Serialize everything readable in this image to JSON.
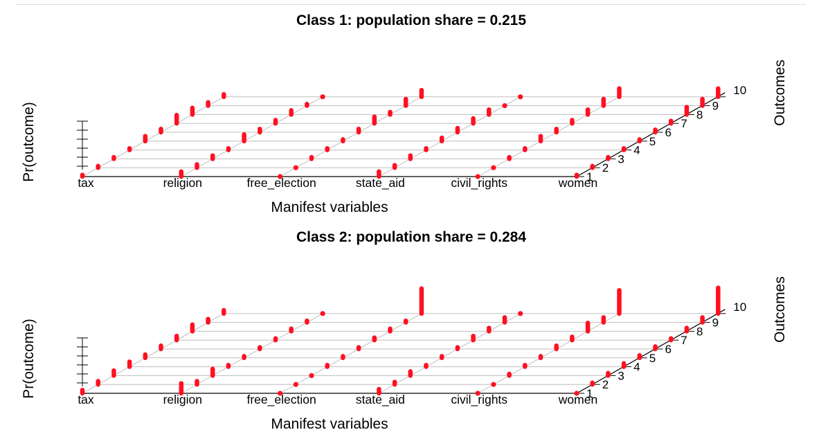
{
  "chart_data": [
    {
      "type": "3d-stick",
      "title": "Class 1: population share = 0.215",
      "xlabel": "Manifest variables",
      "ylabel": "Pr(outcome)",
      "zlabel": "Outcomes",
      "variables": [
        "tax",
        "religion",
        "free_election",
        "state_aid",
        "civil_rights",
        "women"
      ],
      "outcomes": [
        "1",
        "2",
        "3",
        "4",
        "5",
        "6",
        "7",
        "8",
        "9",
        "10"
      ],
      "probabilities": [
        [
          0.02,
          0.02,
          0.02,
          0.02,
          0.06,
          0.04,
          0.1,
          0.08,
          0.04,
          0.03
        ],
        [
          0.06,
          0.04,
          0.04,
          0.02,
          0.08,
          0.04,
          0.04,
          0.05,
          0.02,
          0.0
        ],
        [
          0.0,
          0.0,
          0.02,
          0.02,
          0.02,
          0.04,
          0.08,
          0.03,
          0.08,
          0.08
        ],
        [
          0.06,
          0.03,
          0.04,
          0.02,
          0.04,
          0.05,
          0.06,
          0.06,
          0.0,
          0.0
        ],
        [
          0.0,
          0.0,
          0.02,
          0.02,
          0.06,
          0.04,
          0.04,
          0.06,
          0.08,
          0.1
        ],
        [
          0.02,
          0.02,
          0.02,
          0.02,
          0.02,
          0.03,
          0.03,
          0.09,
          0.08,
          0.1
        ]
      ],
      "zmax": 0.6
    },
    {
      "type": "3d-stick",
      "title": "Class 2: population share = 0.284",
      "xlabel": "Manifest variables",
      "ylabel": "Pr(outcome)",
      "zlabel": "Outcomes",
      "variables": [
        "tax",
        "religion",
        "free_election",
        "state_aid",
        "civil_rights",
        "women"
      ],
      "outcomes": [
        "1",
        "2",
        "3",
        "4",
        "5",
        "6",
        "7",
        "8",
        "9",
        "10"
      ],
      "probabilities": [
        [
          0.04,
          0.04,
          0.06,
          0.06,
          0.04,
          0.04,
          0.05,
          0.08,
          0.04,
          0.04
        ],
        [
          0.12,
          0.04,
          0.08,
          0.02,
          0.02,
          0.02,
          0.02,
          0.03,
          0.02,
          0.0
        ],
        [
          0.0,
          0.0,
          0.0,
          0.02,
          0.02,
          0.02,
          0.03,
          0.03,
          0.02,
          0.3
        ],
        [
          0.05,
          0.03,
          0.05,
          0.02,
          0.02,
          0.02,
          0.05,
          0.04,
          0.06,
          0.0
        ],
        [
          0.0,
          0.0,
          0.02,
          0.02,
          0.02,
          0.04,
          0.04,
          0.1,
          0.06,
          0.28
        ],
        [
          0.0,
          0.02,
          0.03,
          0.04,
          0.03,
          0.03,
          0.02,
          0.04,
          0.06,
          0.31
        ]
      ],
      "zmax": 0.6
    }
  ]
}
